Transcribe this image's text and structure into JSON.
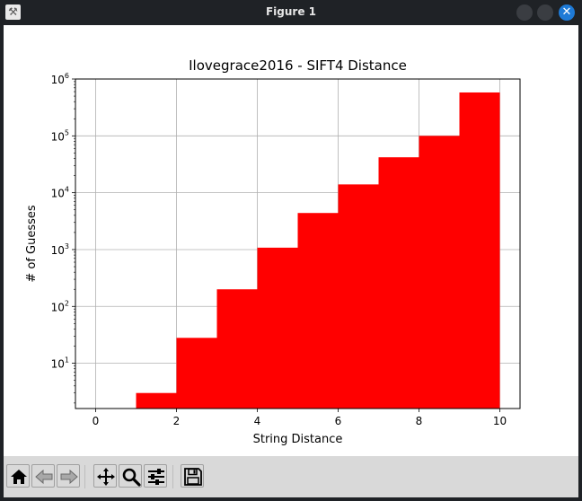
{
  "window": {
    "title": "Figure 1",
    "app_icon": "matplotlib-icon"
  },
  "toolbar": {
    "buttons": [
      {
        "name": "home-button",
        "icon": "home-icon"
      },
      {
        "name": "back-button",
        "icon": "back-arrow-icon"
      },
      {
        "name": "forward-button",
        "icon": "forward-arrow-icon"
      },
      {
        "name": "pan-button",
        "icon": "move-icon"
      },
      {
        "name": "zoom-button",
        "icon": "magnifier-icon"
      },
      {
        "name": "configure-subplots-button",
        "icon": "sliders-icon"
      },
      {
        "name": "save-button",
        "icon": "floppy-disk-icon"
      }
    ]
  },
  "chart_data": {
    "type": "bar",
    "title": "Ilovegrace2016 - SIFT4 Distance",
    "xlabel": "String Distance",
    "ylabel": "# of Guesses",
    "yscale": "log",
    "bar_color": "#ff0000",
    "grid": true,
    "xlim": [
      -0.5,
      10.5
    ],
    "ylim": [
      1.6,
      1000000
    ],
    "xticks": [
      0,
      2,
      4,
      6,
      8,
      10
    ],
    "xtick_labels": [
      "0",
      "2",
      "4",
      "6",
      "8",
      "10"
    ],
    "yticks": [
      10,
      100,
      1000,
      10000,
      100000,
      1000000
    ],
    "ytick_labels": [
      {
        "base": "10",
        "exp": "1"
      },
      {
        "base": "10",
        "exp": "2"
      },
      {
        "base": "10",
        "exp": "3"
      },
      {
        "base": "10",
        "exp": "4"
      },
      {
        "base": "10",
        "exp": "5"
      },
      {
        "base": "10",
        "exp": "6"
      }
    ],
    "bins": [
      {
        "x0": 1,
        "x1": 2,
        "value": 3
      },
      {
        "x0": 2,
        "x1": 3,
        "value": 28
      },
      {
        "x0": 3,
        "x1": 4,
        "value": 200
      },
      {
        "x0": 4,
        "x1": 5,
        "value": 1080
      },
      {
        "x0": 5,
        "x1": 6,
        "value": 4400
      },
      {
        "x0": 6,
        "x1": 7,
        "value": 14000
      },
      {
        "x0": 7,
        "x1": 8,
        "value": 42000
      },
      {
        "x0": 8,
        "x1": 9,
        "value": 100000
      },
      {
        "x0": 9,
        "x1": 10,
        "value": 580000
      }
    ]
  }
}
